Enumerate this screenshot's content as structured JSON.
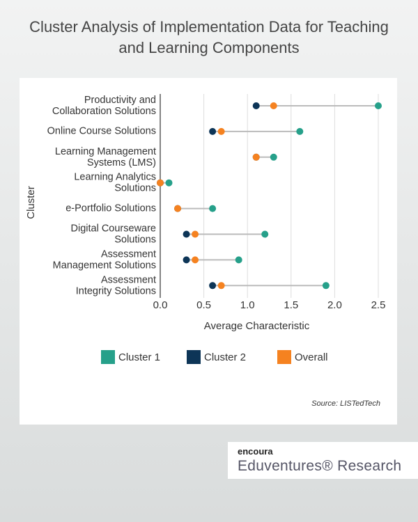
{
  "chart_data": {
    "type": "dumbbell",
    "title": "Cluster Analysis of Implementation Data for Teaching and Learning Components",
    "categories": [
      "Productivity and\nCollaboration Solutions",
      "Online Course Solutions",
      "Learning Management\nSystems (LMS)",
      "Learning Analytics\nSolutions",
      "e-Portfolio Solutions",
      "Digital Courseware\nSolutions",
      "Assessment\nManagement Solutions",
      "Assessment\nIntegrity Solutions"
    ],
    "series": [
      {
        "name": "Cluster 1",
        "color": "#26a08a",
        "values": [
          2.5,
          1.6,
          1.3,
          0.1,
          0.6,
          1.2,
          0.9,
          1.9
        ]
      },
      {
        "name": "Cluster 2",
        "color": "#0d3557",
        "values": [
          1.1,
          0.6,
          1.1,
          0.0,
          0.2,
          0.3,
          0.3,
          0.6
        ]
      },
      {
        "name": "Overall",
        "color": "#f58220",
        "values": [
          1.3,
          0.7,
          1.1,
          0.0,
          0.2,
          0.4,
          0.4,
          0.7
        ]
      }
    ],
    "xlabel": "Average Characteristic",
    "ylabel": "Cluster",
    "xlim": [
      0,
      2.5
    ],
    "xticks": [
      {
        "value": 0,
        "label": "0.0"
      },
      0.5,
      {
        "value": 1,
        "label": "1.0"
      },
      1.5,
      {
        "value": 2,
        "label": "2.0"
      },
      2.5
    ],
    "grid": true,
    "legend": "bottom",
    "source": "Source: LISTedTech"
  },
  "branding": {
    "company": "encoura",
    "product": "Eduventures® Research"
  }
}
